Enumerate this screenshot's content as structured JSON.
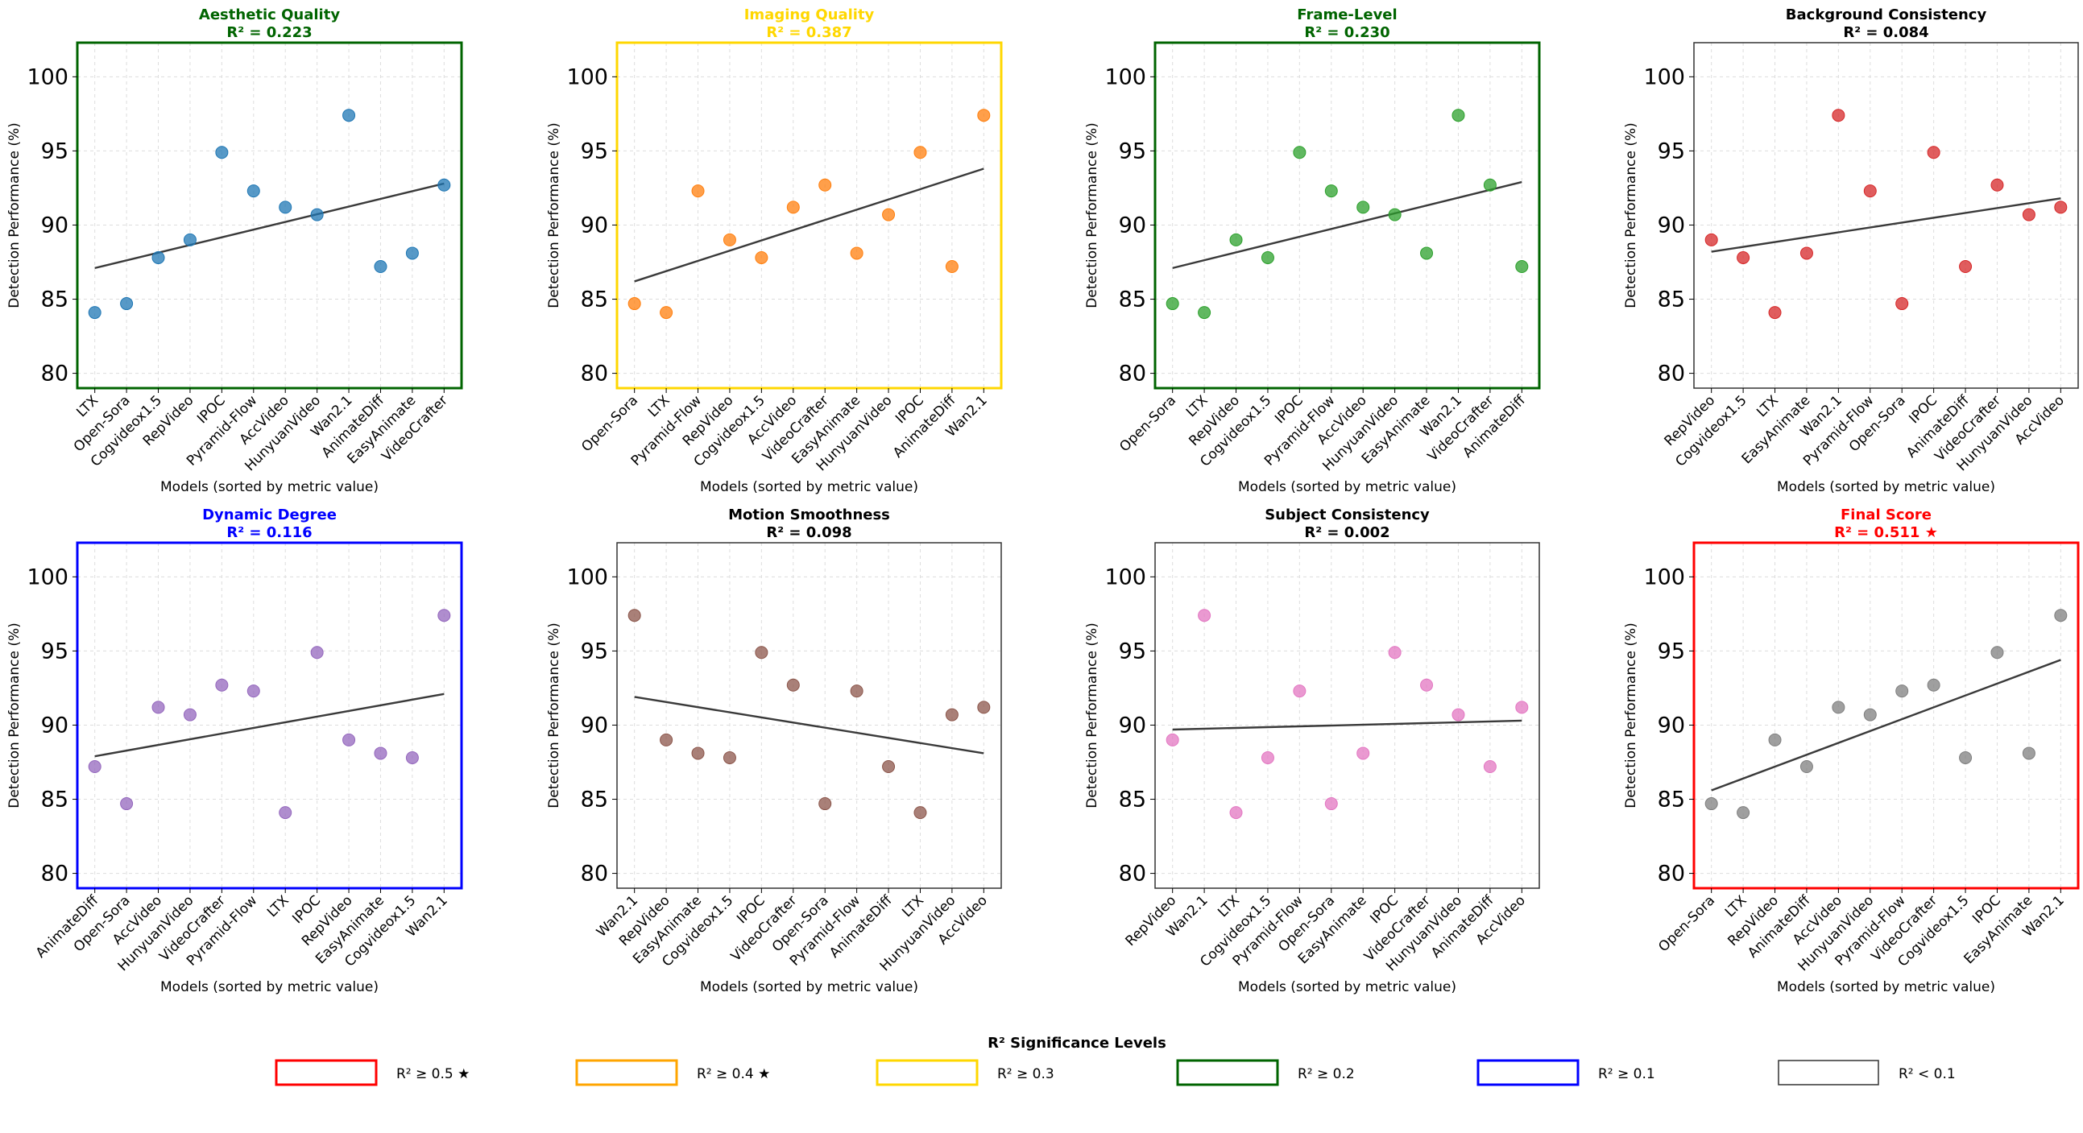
{
  "ylabel": "Detection Performance (%)",
  "xlabel": "Models (sorted by metric value)",
  "legend": {
    "title": "R² Significance Levels",
    "items": [
      {
        "label": "R² ≥ 0.5 ★",
        "color": "#ff0000"
      },
      {
        "label": "R² ≥ 0.4 ★",
        "color": "#ffa500"
      },
      {
        "label": "R² ≥ 0.3",
        "color": "#ffd700"
      },
      {
        "label": "R² ≥ 0.2",
        "color": "#006400"
      },
      {
        "label": "R² ≥ 0.1",
        "color": "#0000ff"
      },
      {
        "label": "R² < 0.1",
        "color": "#333333"
      }
    ]
  },
  "chart_data": [
    {
      "type": "scatter",
      "title": "Aesthetic Quality",
      "subtitle": "R² = 0.223",
      "title_color": "#006400",
      "border_color": "#006400",
      "point_color": "#1f77b4",
      "categories": [
        "LTX",
        "Open-Sora",
        "Cogvideox1.5",
        "RepVideo",
        "IPOC",
        "Pyramid-Flow",
        "AccVideo",
        "HunyuanVideo",
        "Wan2.1",
        "AnimateDiff",
        "EasyAnimate",
        "VideoCrafter"
      ],
      "values": [
        84.1,
        84.7,
        87.8,
        89.0,
        94.9,
        92.3,
        91.2,
        90.7,
        97.4,
        87.2,
        88.1,
        92.7
      ],
      "trend": [
        87.1,
        92.8
      ],
      "ylim": [
        79,
        102.3
      ],
      "yticks": [
        80,
        85,
        90,
        95,
        100
      ]
    },
    {
      "type": "scatter",
      "title": "Imaging Quality",
      "subtitle": "R² = 0.387",
      "title_color": "#ffd700",
      "border_color": "#ffd700",
      "point_color": "#ff7f0e",
      "categories": [
        "Open-Sora",
        "LTX",
        "Pyramid-Flow",
        "RepVideo",
        "Cogvideox1.5",
        "AccVideo",
        "VideoCrafter",
        "EasyAnimate",
        "HunyuanVideo",
        "IPOC",
        "AnimateDiff",
        "Wan2.1"
      ],
      "values": [
        84.7,
        84.1,
        92.3,
        89.0,
        87.8,
        91.2,
        92.7,
        88.1,
        90.7,
        94.9,
        87.2,
        97.4
      ],
      "trend": [
        86.2,
        93.8
      ],
      "ylim": [
        79,
        102.3
      ],
      "yticks": [
        80,
        85,
        90,
        95,
        100
      ]
    },
    {
      "type": "scatter",
      "title": "Frame-Level",
      "subtitle": "R² = 0.230",
      "title_color": "#006400",
      "border_color": "#006400",
      "point_color": "#2ca02c",
      "categories": [
        "Open-Sora",
        "LTX",
        "RepVideo",
        "Cogvideox1.5",
        "IPOC",
        "Pyramid-Flow",
        "AccVideo",
        "HunyuanVideo",
        "EasyAnimate",
        "Wan2.1",
        "VideoCrafter",
        "AnimateDiff"
      ],
      "values": [
        84.7,
        84.1,
        89.0,
        87.8,
        94.9,
        92.3,
        91.2,
        90.7,
        88.1,
        97.4,
        92.7,
        87.2
      ],
      "trend": [
        87.1,
        92.9
      ],
      "ylim": [
        79,
        102.3
      ],
      "yticks": [
        80,
        85,
        90,
        95,
        100
      ]
    },
    {
      "type": "scatter",
      "title": "Background Consistency",
      "subtitle": "R² = 0.084",
      "title_color": "#000000",
      "border_color": "#333333",
      "point_color": "#d62728",
      "categories": [
        "RepVideo",
        "Cogvideox1.5",
        "LTX",
        "EasyAnimate",
        "Wan2.1",
        "Pyramid-Flow",
        "Open-Sora",
        "IPOC",
        "AnimateDiff",
        "VideoCrafter",
        "HunyuanVideo",
        "AccVideo"
      ],
      "values": [
        89.0,
        87.8,
        84.1,
        88.1,
        97.4,
        92.3,
        84.7,
        94.9,
        87.2,
        92.7,
        90.7,
        91.2
      ],
      "trend": [
        88.2,
        91.8
      ],
      "ylim": [
        79,
        102.3
      ],
      "yticks": [
        80,
        85,
        90,
        95,
        100
      ]
    },
    {
      "type": "scatter",
      "title": "Dynamic Degree",
      "subtitle": "R² = 0.116",
      "title_color": "#0000ff",
      "border_color": "#0000ff",
      "point_color": "#9467bd",
      "categories": [
        "AnimateDiff",
        "Open-Sora",
        "AccVideo",
        "HunyuanVideo",
        "VideoCrafter",
        "Pyramid-Flow",
        "LTX",
        "IPOC",
        "RepVideo",
        "EasyAnimate",
        "Cogvideox1.5",
        "Wan2.1"
      ],
      "values": [
        87.2,
        84.7,
        91.2,
        90.7,
        92.7,
        92.3,
        84.1,
        94.9,
        89.0,
        88.1,
        87.8,
        97.4
      ],
      "trend": [
        87.9,
        92.1
      ],
      "ylim": [
        79,
        102.3
      ],
      "yticks": [
        80,
        85,
        90,
        95,
        100
      ]
    },
    {
      "type": "scatter",
      "title": "Motion Smoothness",
      "subtitle": "R² = 0.098",
      "title_color": "#000000",
      "border_color": "#333333",
      "point_color": "#8c564b",
      "categories": [
        "Wan2.1",
        "RepVideo",
        "EasyAnimate",
        "Cogvideox1.5",
        "IPOC",
        "VideoCrafter",
        "Open-Sora",
        "Pyramid-Flow",
        "AnimateDiff",
        "LTX",
        "HunyuanVideo",
        "AccVideo"
      ],
      "values": [
        97.4,
        89.0,
        88.1,
        87.8,
        94.9,
        92.7,
        84.7,
        92.3,
        87.2,
        84.1,
        90.7,
        91.2
      ],
      "trend": [
        91.9,
        88.1
      ],
      "ylim": [
        79,
        102.3
      ],
      "yticks": [
        80,
        85,
        90,
        95,
        100
      ]
    },
    {
      "type": "scatter",
      "title": "Subject Consistency",
      "subtitle": "R² = 0.002",
      "title_color": "#000000",
      "border_color": "#333333",
      "point_color": "#e377c2",
      "categories": [
        "RepVideo",
        "Wan2.1",
        "LTX",
        "Cogvideox1.5",
        "Pyramid-Flow",
        "Open-Sora",
        "EasyAnimate",
        "IPOC",
        "VideoCrafter",
        "HunyuanVideo",
        "AnimateDiff",
        "AccVideo"
      ],
      "values": [
        89.0,
        97.4,
        84.1,
        87.8,
        92.3,
        84.7,
        88.1,
        94.9,
        92.7,
        90.7,
        87.2,
        91.2
      ],
      "trend": [
        89.7,
        90.3
      ],
      "ylim": [
        79,
        102.3
      ],
      "yticks": [
        80,
        85,
        90,
        95,
        100
      ]
    },
    {
      "type": "scatter",
      "title": "Final Score",
      "subtitle": "R² = 0.511 ★",
      "title_color": "#ff0000",
      "border_color": "#ff0000",
      "point_color": "#7f7f7f",
      "categories": [
        "Open-Sora",
        "LTX",
        "RepVideo",
        "AnimateDiff",
        "AccVideo",
        "HunyuanVideo",
        "Pyramid-Flow",
        "VideoCrafter",
        "Cogvideox1.5",
        "IPOC",
        "EasyAnimate",
        "Wan2.1"
      ],
      "values": [
        84.7,
        84.1,
        89.0,
        87.2,
        91.2,
        90.7,
        92.3,
        92.7,
        87.8,
        94.9,
        88.1,
        97.4
      ],
      "trend": [
        85.6,
        94.4
      ],
      "ylim": [
        79,
        102.3
      ],
      "yticks": [
        80,
        85,
        90,
        95,
        100
      ]
    }
  ]
}
